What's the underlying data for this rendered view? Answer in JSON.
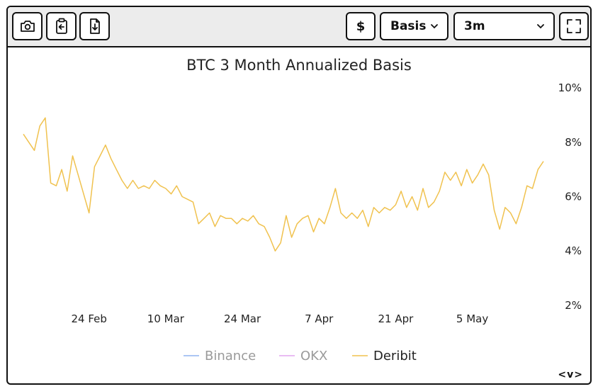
{
  "toolbar": {
    "camera_icon": "camera-icon",
    "clipboard_icon": "clipboard-icon",
    "download_icon": "download-icon",
    "currency_label": "$",
    "metric_select": "Basis",
    "period_select": "3m",
    "fullscreen_icon": "fullscreen-icon"
  },
  "nav": {
    "label": "<v>"
  },
  "colors": {
    "binance": "#8fb4f0",
    "okx": "#e2a6ef",
    "deribit": "#f0c24f"
  },
  "chart_data": {
    "type": "line",
    "title": "BTC 3 Month Annualized Basis",
    "y_axis": {
      "position": "right",
      "ticks": [
        "10%",
        "8%",
        "6%",
        "4%",
        "2%"
      ],
      "ylim": [
        1.5,
        10.5
      ],
      "unit": "%"
    },
    "x_axis": {
      "ticks": [
        "24 Feb",
        "10 Mar",
        "24 Mar",
        "7 Apr",
        "21 Apr",
        "5 May"
      ],
      "range": [
        "2025-02-12",
        "2025-05-18"
      ]
    },
    "legend": {
      "placement": "bottom",
      "entries": [
        "Binance",
        "OKX",
        "Deribit"
      ]
    },
    "grid": false,
    "series": [
      {
        "name": "Binance",
        "color": "#8fb4f0",
        "x": [],
        "y": []
      },
      {
        "name": "OKX",
        "color": "#e2a6ef",
        "x": [],
        "y": []
      },
      {
        "name": "Deribit",
        "color": "#f0c24f",
        "x": [
          "2025-02-12",
          "2025-02-13",
          "2025-02-14",
          "2025-02-15",
          "2025-02-16",
          "2025-02-17",
          "2025-02-18",
          "2025-02-19",
          "2025-02-20",
          "2025-02-21",
          "2025-02-22",
          "2025-02-23",
          "2025-02-24",
          "2025-02-25",
          "2025-02-26",
          "2025-02-27",
          "2025-02-28",
          "2025-03-01",
          "2025-03-02",
          "2025-03-03",
          "2025-03-04",
          "2025-03-05",
          "2025-03-06",
          "2025-03-07",
          "2025-03-08",
          "2025-03-09",
          "2025-03-10",
          "2025-03-11",
          "2025-03-12",
          "2025-03-13",
          "2025-03-14",
          "2025-03-15",
          "2025-03-16",
          "2025-03-17",
          "2025-03-18",
          "2025-03-19",
          "2025-03-20",
          "2025-03-21",
          "2025-03-22",
          "2025-03-23",
          "2025-03-24",
          "2025-03-25",
          "2025-03-26",
          "2025-03-27",
          "2025-03-28",
          "2025-03-29",
          "2025-03-30",
          "2025-03-31",
          "2025-04-01",
          "2025-04-02",
          "2025-04-03",
          "2025-04-04",
          "2025-04-05",
          "2025-04-06",
          "2025-04-07",
          "2025-04-08",
          "2025-04-09",
          "2025-04-10",
          "2025-04-11",
          "2025-04-12",
          "2025-04-13",
          "2025-04-14",
          "2025-04-15",
          "2025-04-16",
          "2025-04-17",
          "2025-04-18",
          "2025-04-19",
          "2025-04-20",
          "2025-04-21",
          "2025-04-22",
          "2025-04-23",
          "2025-04-24",
          "2025-04-25",
          "2025-04-26",
          "2025-04-27",
          "2025-04-28",
          "2025-04-29",
          "2025-04-30",
          "2025-05-01",
          "2025-05-02",
          "2025-05-03",
          "2025-05-04",
          "2025-05-05",
          "2025-05-06",
          "2025-05-07",
          "2025-05-08",
          "2025-05-09",
          "2025-05-10",
          "2025-05-11",
          "2025-05-12",
          "2025-05-13",
          "2025-05-14",
          "2025-05-15",
          "2025-05-16",
          "2025-05-17",
          "2025-05-18"
        ],
        "y": [
          8.3,
          8.0,
          7.7,
          8.6,
          8.9,
          6.5,
          6.4,
          7.0,
          6.2,
          7.5,
          6.8,
          6.1,
          5.4,
          7.1,
          7.5,
          7.9,
          7.4,
          7.0,
          6.6,
          6.3,
          6.6,
          6.3,
          6.4,
          6.3,
          6.6,
          6.4,
          6.3,
          6.1,
          6.4,
          6.0,
          5.9,
          5.8,
          5.0,
          5.2,
          5.4,
          4.9,
          5.3,
          5.2,
          5.2,
          5.0,
          5.2,
          5.1,
          5.3,
          5.0,
          4.9,
          4.5,
          4.0,
          4.3,
          5.3,
          4.5,
          5.0,
          5.2,
          5.3,
          4.7,
          5.2,
          5.0,
          5.6,
          6.3,
          5.4,
          5.2,
          5.4,
          5.2,
          5.5,
          4.9,
          5.6,
          5.4,
          5.6,
          5.5,
          5.7,
          6.2,
          5.6,
          6.0,
          5.5,
          6.3,
          5.6,
          5.8,
          6.2,
          6.9,
          6.6,
          6.9,
          6.4,
          7.0,
          6.5,
          6.8,
          7.2,
          6.8,
          5.5,
          4.8,
          5.6,
          5.4,
          5.0,
          5.6,
          6.4,
          6.3,
          7.0,
          7.3
        ]
      }
    ]
  }
}
